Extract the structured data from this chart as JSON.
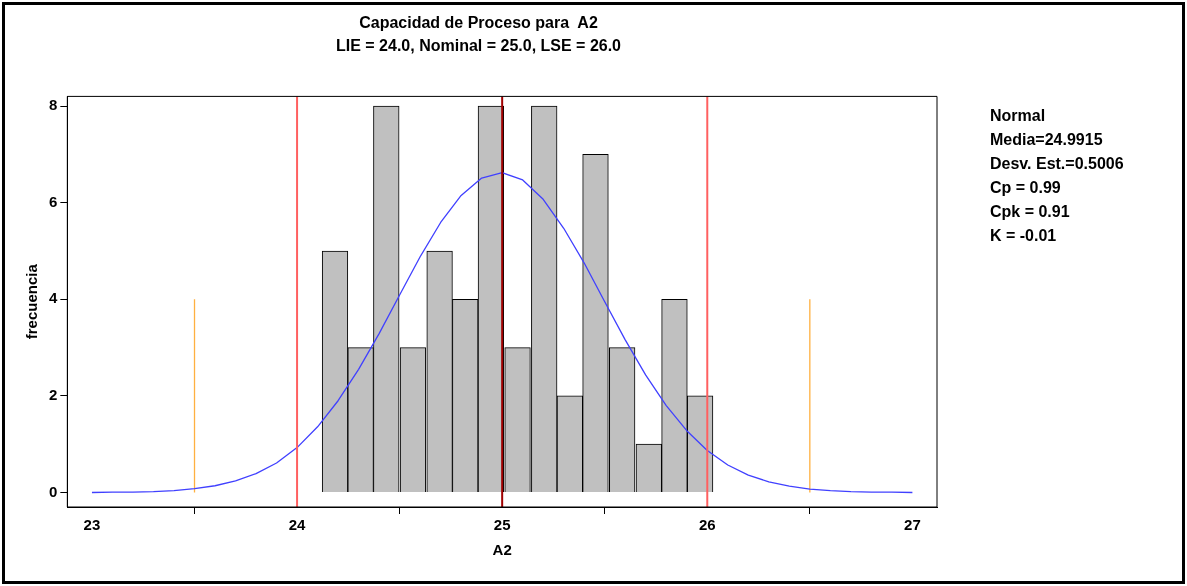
{
  "chart_data": {
    "type": "histogram",
    "title": "Capacidad de Proceso para  A2",
    "subtitle": "LIE = 24.0, Nominal = 25.0, LSE = 26.0",
    "xlabel": "A2",
    "ylabel": "frecuencia",
    "bins": [
      24.12,
      24.25,
      24.37,
      24.5,
      24.63,
      24.76,
      24.88,
      25.01,
      25.14,
      25.27,
      25.39,
      25.52,
      25.65,
      25.78,
      25.9,
      26.03
    ],
    "values": [
      5,
      3,
      8,
      3,
      5,
      4,
      8,
      3,
      8,
      2,
      7,
      3,
      1,
      4,
      2
    ],
    "color": "#c0c0c0",
    "series": [
      {
        "type": "line",
        "color": "#4040ff",
        "x": [
          23,
          23.1,
          23.2,
          23.3,
          23.4,
          23.5,
          23.6,
          23.7,
          23.8,
          23.9,
          24,
          24.1,
          24.2,
          24.3,
          24.4,
          24.5,
          24.6,
          24.7,
          24.8,
          24.9,
          25,
          25.1,
          25.2,
          25.3,
          25.4,
          25.5,
          25.6,
          25.7,
          25.8,
          25.9,
          26,
          26.1,
          26.2,
          26.3,
          26.4,
          26.5,
          26.6,
          26.7,
          26.8,
          26.9,
          27
        ],
        "values": [
          0,
          0.01,
          0.01,
          0.02,
          0.04,
          0.08,
          0.14,
          0.24,
          0.39,
          0.61,
          0.93,
          1.36,
          1.9,
          2.55,
          3.29,
          4.09,
          4.88,
          5.59,
          6.15,
          6.51,
          6.62,
          6.47,
          6.07,
          5.47,
          4.75,
          3.95,
          3.16,
          2.43,
          1.8,
          1.28,
          0.87,
          0.57,
          0.36,
          0.22,
          0.13,
          0.07,
          0.04,
          0.02,
          0.01,
          0.01,
          0
        ]
      },
      {
        "type": "line",
        "color": "#ffb040",
        "x": [
          23.5,
          23.5
        ],
        "values": [
          0,
          4
        ]
      },
      {
        "type": "line",
        "color": "#ffb040",
        "x": [
          26.5,
          26.5
        ],
        "values": [
          0,
          4
        ]
      }
    ],
    "ref_lines": [
      {
        "axis": "x",
        "value": 24,
        "color": "#ff6060"
      },
      {
        "axis": "x",
        "value": 25,
        "color": "#a00000"
      },
      {
        "axis": "x",
        "value": 26,
        "color": "#ff6060"
      }
    ],
    "xlim": [
      22.88,
      27.12
    ],
    "xticks": [
      23,
      24,
      25,
      26,
      27
    ],
    "ylim": [
      -0.3,
      8.2
    ],
    "yticks": [
      0,
      2,
      4,
      6,
      8
    ],
    "annotations": [
      "Normal",
      "Media=24.9915",
      "Desv. Est.=0.5006",
      "Cp = 0.99",
      "Cpk = 0.91",
      "K = -0.01"
    ]
  }
}
